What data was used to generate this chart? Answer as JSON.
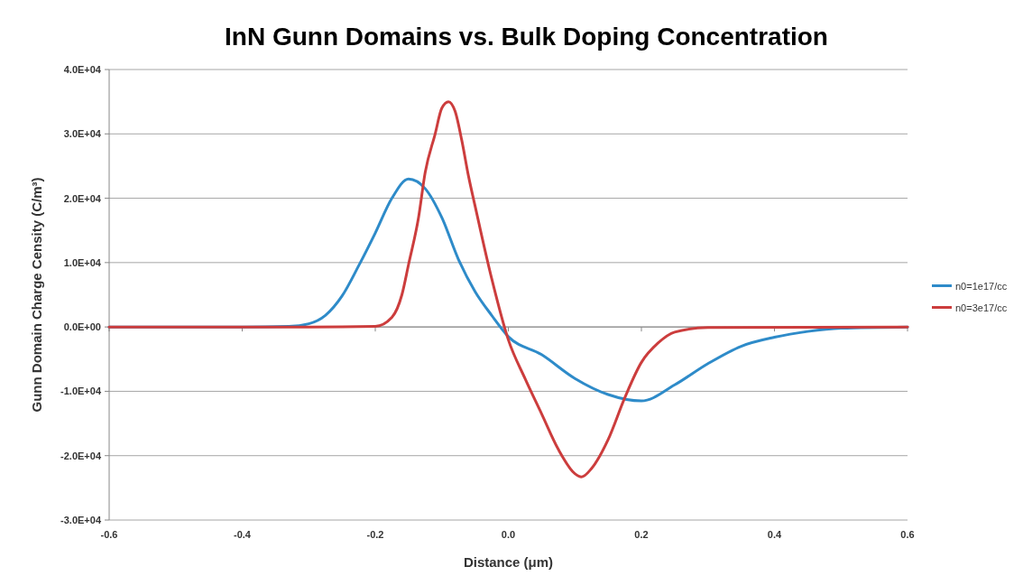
{
  "chart_data": {
    "type": "line",
    "title": "InN Gunn Domains vs. Bulk Doping Concentration",
    "xlabel": "Distance (μm)",
    "ylabel": "Gunn Domain Charge Censity (C/m³)",
    "xlim": [
      -0.6,
      0.6
    ],
    "xticks": [
      -0.6,
      -0.4,
      -0.2,
      {
        "value": 0,
        "label": "0.0"
      },
      0.2,
      0.4,
      0.6
    ],
    "ylim": [
      -30000,
      40000
    ],
    "yticks": [
      {
        "value": -30000,
        "label": "-3.0E+04"
      },
      {
        "value": -20000,
        "label": "-2.0E+04"
      },
      {
        "value": -10000,
        "label": "-1.0E+04"
      },
      {
        "value": 0,
        "label": "0.0E+00"
      },
      {
        "value": 10000,
        "label": "1.0E+04"
      },
      {
        "value": 20000,
        "label": "2.0E+04"
      },
      {
        "value": 30000,
        "label": "3.0E+04"
      },
      {
        "value": 40000,
        "label": "4.0E+04"
      }
    ],
    "grid": "y",
    "legend": "right",
    "marker": "none",
    "line_style": "solid",
    "series": [
      {
        "name": "n0=1e17/cc",
        "color": "#2e8bc9",
        "x": [
          -0.6,
          -0.4,
          -0.33,
          -0.3,
          -0.275,
          -0.25,
          -0.225,
          -0.2,
          -0.175,
          -0.15,
          -0.125,
          -0.1,
          -0.075,
          -0.05,
          -0.025,
          0,
          0.05,
          0.1,
          0.15,
          0.2,
          0.25,
          0.3,
          0.35,
          0.4,
          0.45,
          0.5,
          0.6
        ],
        "values": [
          0,
          0,
          100,
          500,
          1800,
          4800,
          9500,
          14600,
          20000,
          23000,
          21500,
          17000,
          10500,
          5500,
          1800,
          -1500,
          -4300,
          -8000,
          -10500,
          -11500,
          -9000,
          -5700,
          -3000,
          -1600,
          -700,
          -200,
          0
        ]
      },
      {
        "name": "n0=3e17/cc",
        "color": "#cc3d3d",
        "x": [
          -0.6,
          -0.3,
          -0.2,
          -0.175,
          -0.16,
          -0.15,
          -0.135,
          -0.125,
          -0.11,
          -0.1,
          -0.09,
          -0.08,
          -0.07,
          -0.06,
          -0.05,
          -0.025,
          0,
          0.025,
          0.05,
          0.075,
          0.1,
          0.11,
          0.125,
          0.15,
          0.175,
          0.2,
          0.225,
          0.25,
          0.3,
          0.6
        ],
        "values": [
          0,
          0,
          100,
          1500,
          5000,
          9700,
          17000,
          24000,
          30000,
          34000,
          35000,
          33500,
          29000,
          23500,
          18800,
          7500,
          -2000,
          -8000,
          -13500,
          -19000,
          -22800,
          -23300,
          -22000,
          -17500,
          -11000,
          -5500,
          -2500,
          -800,
          -100,
          0
        ]
      }
    ]
  }
}
